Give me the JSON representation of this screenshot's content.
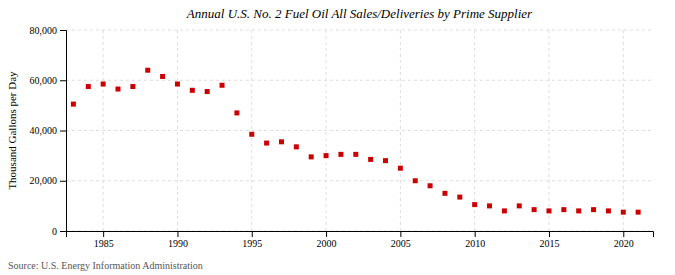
{
  "chart_data": {
    "type": "scatter",
    "title": "Annual U.S. No. 2 Fuel Oil All Sales/Deliveries by Prime Supplier",
    "ylabel": "Thousand Gallons per Day",
    "source": "Source: U.S. Energy Information Administration",
    "color": "#cc0000",
    "marker": "square",
    "grid": true,
    "xlim": [
      1982.5,
      2022
    ],
    "ylim": [
      0,
      80000
    ],
    "xticks": [
      1985,
      1990,
      1995,
      2000,
      2005,
      2010,
      2015,
      2020
    ],
    "yticks": [
      0,
      {
        "value": 20000,
        "label": "20,000"
      },
      {
        "value": 40000,
        "label": "40,000"
      },
      {
        "value": 60000,
        "label": "60,000"
      },
      {
        "value": 80000,
        "label": "80,000"
      }
    ],
    "x": [
      1983,
      1984,
      1985,
      1986,
      1987,
      1988,
      1989,
      1990,
      1991,
      1992,
      1993,
      1994,
      1995,
      1996,
      1997,
      1998,
      1999,
      2000,
      2001,
      2002,
      2003,
      2004,
      2005,
      2006,
      2007,
      2008,
      2009,
      2010,
      2011,
      2012,
      2013,
      2014,
      2015,
      2016,
      2017,
      2018,
      2019,
      2020,
      2021
    ],
    "values": [
      50500,
      57500,
      58500,
      56500,
      57500,
      64000,
      61500,
      58500,
      56000,
      55500,
      58000,
      47000,
      38500,
      35000,
      35500,
      33500,
      29500,
      30000,
      30500,
      30500,
      28500,
      28000,
      25000,
      20000,
      18000,
      15000,
      13500,
      10500,
      10000,
      8000,
      10000,
      8500,
      8000,
      8500,
      8000,
      8500,
      8000,
      7500,
      7500
    ]
  }
}
